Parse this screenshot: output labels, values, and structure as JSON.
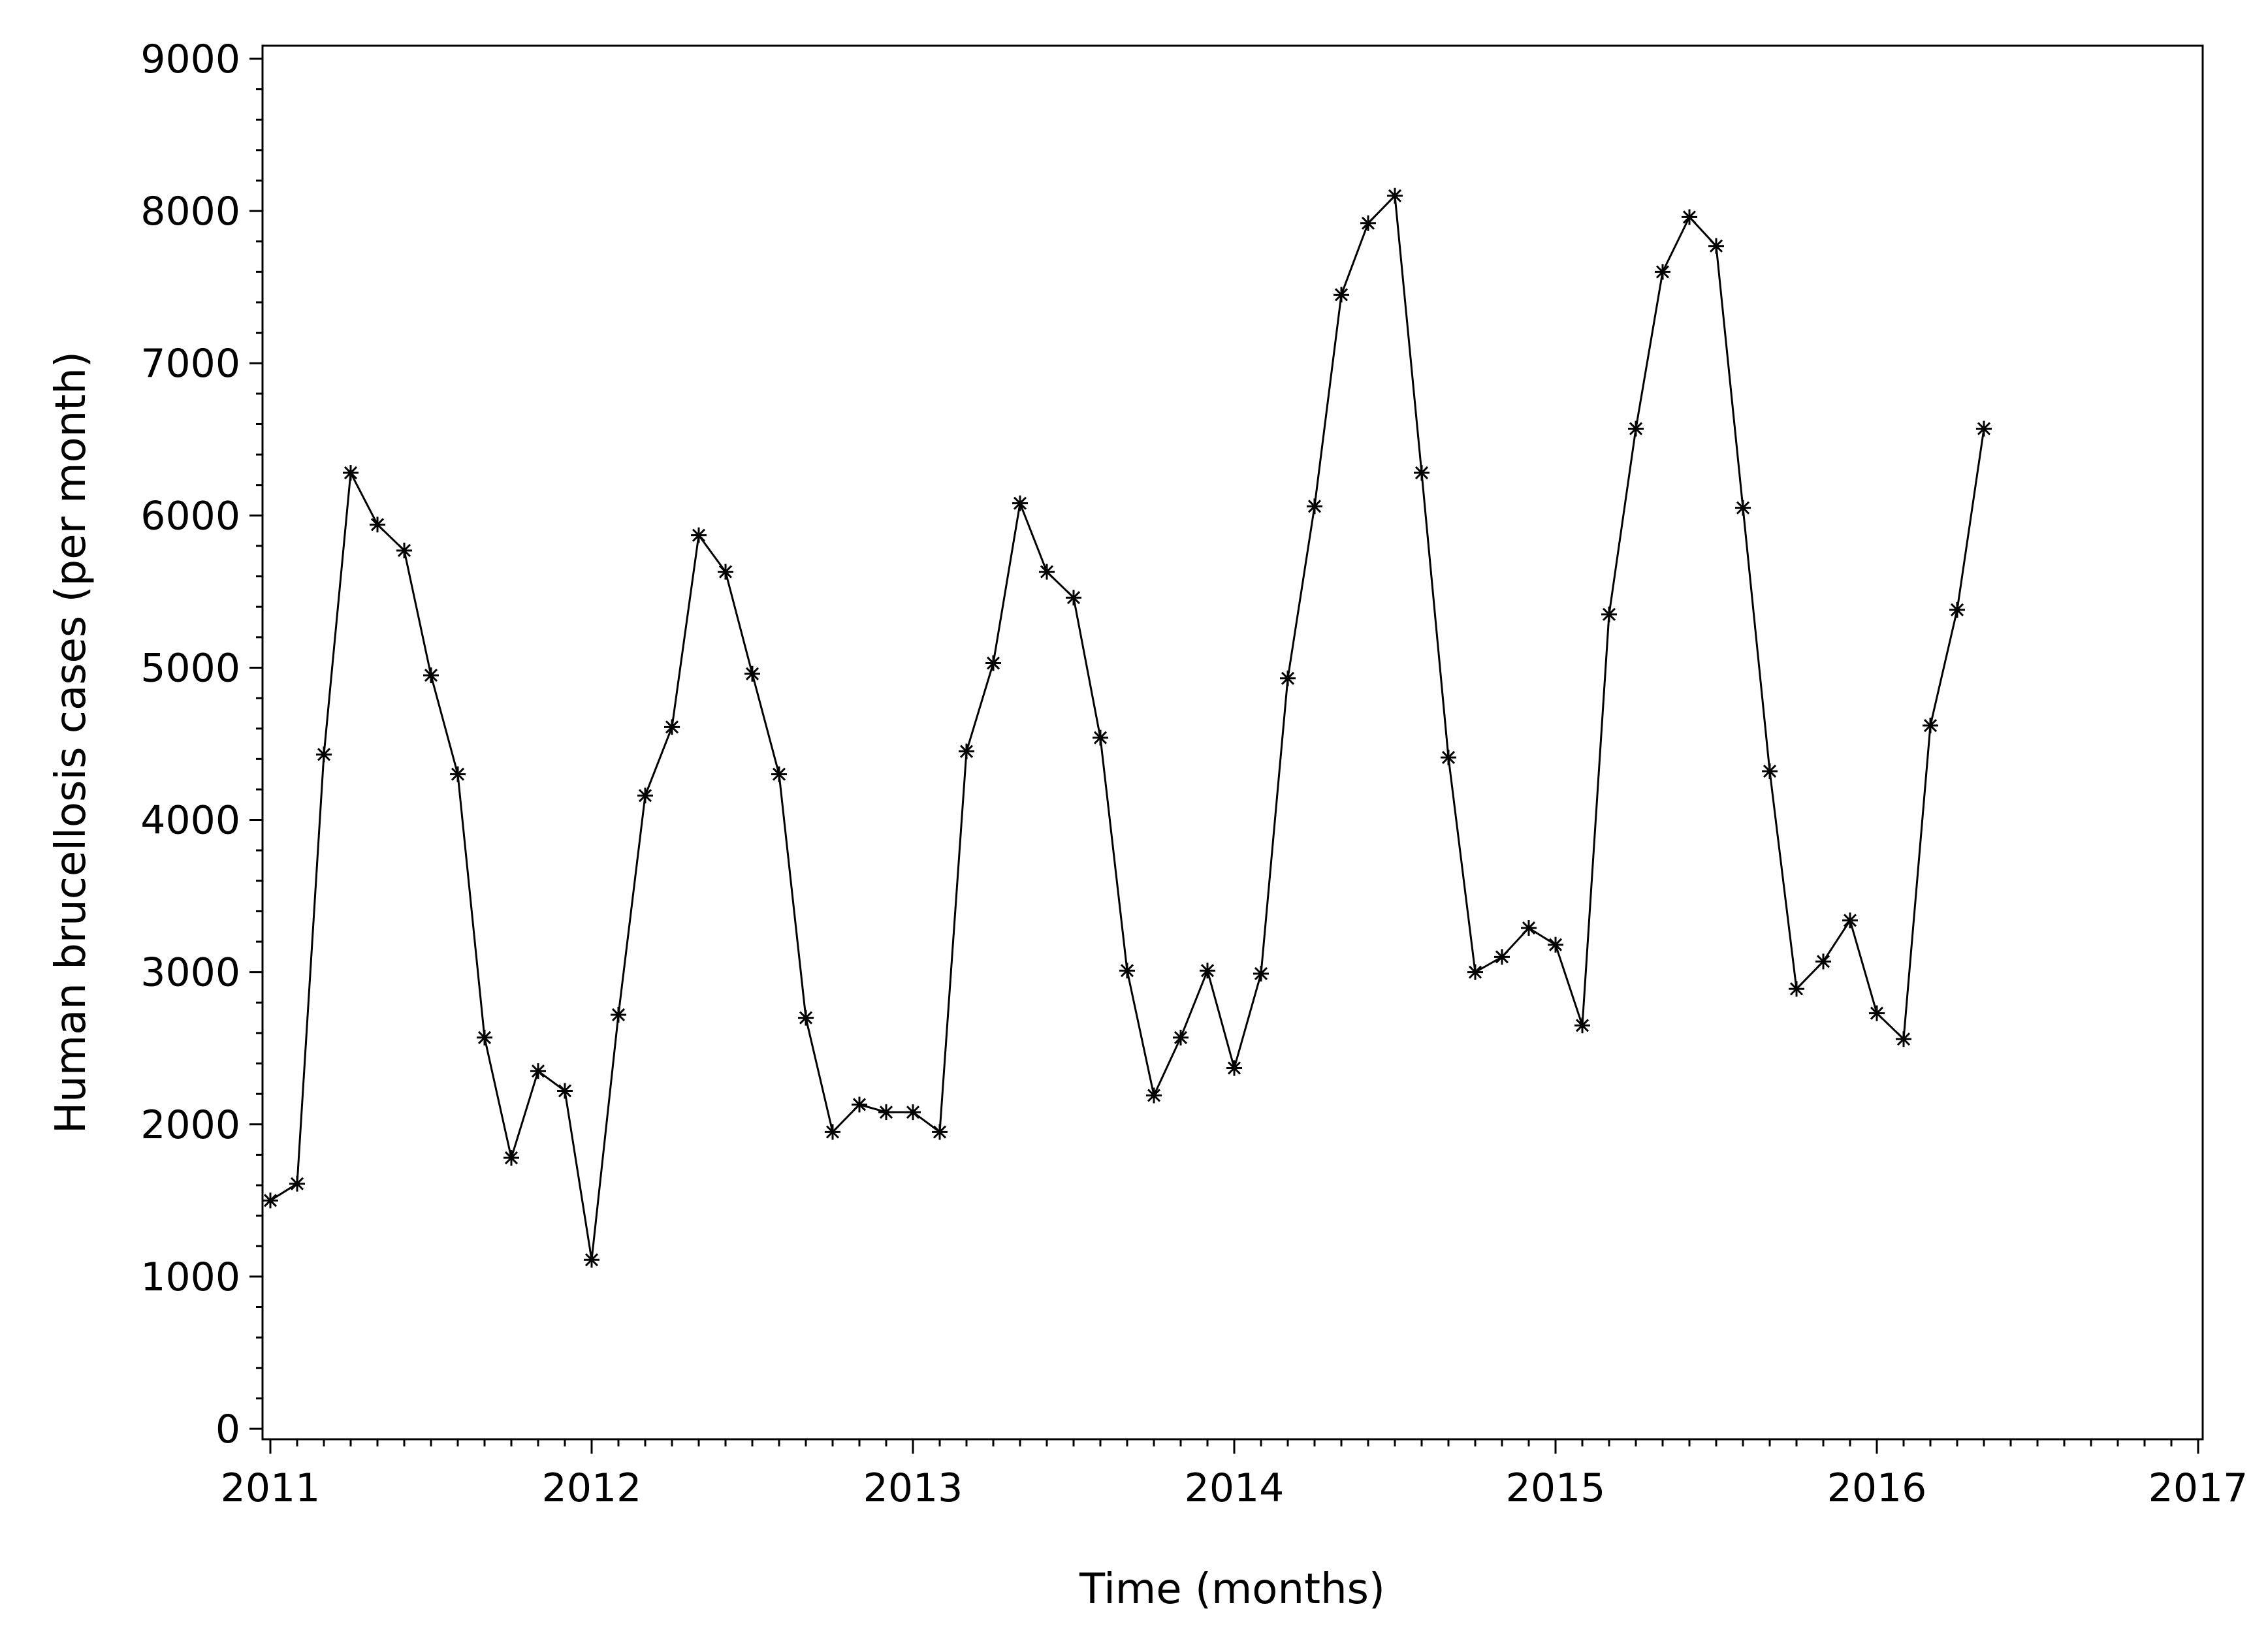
{
  "chart_data": {
    "type": "line",
    "title": "",
    "xlabel": "Time (months)",
    "ylabel": "Human brucellosis cases (per month)",
    "xlim": [
      "2011-01",
      "2017-01"
    ],
    "ylim": [
      0,
      9000
    ],
    "x_ticks": [
      "2011",
      "2012",
      "2013",
      "2014",
      "2015",
      "2016",
      "2017"
    ],
    "y_ticks": [
      "0",
      "1000",
      "2000",
      "3000",
      "4000",
      "5000",
      "6000",
      "7000",
      "8000",
      "9000"
    ],
    "grid": false,
    "legend": "none",
    "marker": "asterisk",
    "line_color": "#000000",
    "series": [
      {
        "x": [
          "2011-01",
          "2011-02",
          "2011-03",
          "2011-04",
          "2011-05",
          "2011-06",
          "2011-07",
          "2011-08",
          "2011-09",
          "2011-10",
          "2011-11",
          "2011-12",
          "2012-01",
          "2012-02",
          "2012-03",
          "2012-04",
          "2012-05",
          "2012-06",
          "2012-07",
          "2012-08",
          "2012-09",
          "2012-10",
          "2012-11",
          "2012-12",
          "2013-01",
          "2013-02",
          "2013-03",
          "2013-04",
          "2013-05",
          "2013-06",
          "2013-07",
          "2013-08",
          "2013-09",
          "2013-10",
          "2013-11",
          "2013-12",
          "2014-01",
          "2014-02",
          "2014-03",
          "2014-04",
          "2014-05",
          "2014-06",
          "2014-07",
          "2014-08",
          "2014-09",
          "2014-10",
          "2014-11",
          "2014-12",
          "2015-01",
          "2015-02",
          "2015-03",
          "2015-04",
          "2015-05",
          "2015-06",
          "2015-07",
          "2015-08",
          "2015-09",
          "2015-10",
          "2015-11",
          "2015-12",
          "2016-01",
          "2016-02",
          "2016-03",
          "2016-04",
          "2016-05"
        ],
        "values": [
          1500,
          1610,
          4430,
          6280,
          5940,
          5770,
          4950,
          4300,
          2570,
          1780,
          2350,
          2220,
          1110,
          2720,
          4160,
          4610,
          5870,
          5630,
          4960,
          4300,
          2700,
          1950,
          2130,
          2080,
          2080,
          1950,
          4450,
          5030,
          6080,
          5630,
          5460,
          4540,
          3010,
          2190,
          2570,
          3010,
          2370,
          2990,
          4930,
          6060,
          7450,
          7920,
          8100,
          6280,
          4410,
          3000,
          3100,
          3290,
          3180,
          2650,
          5350,
          6570,
          7600,
          7960,
          7770,
          6050,
          4320,
          2890,
          3070,
          3340,
          2730,
          2560,
          4620,
          5380,
          6570
        ]
      }
    ]
  }
}
